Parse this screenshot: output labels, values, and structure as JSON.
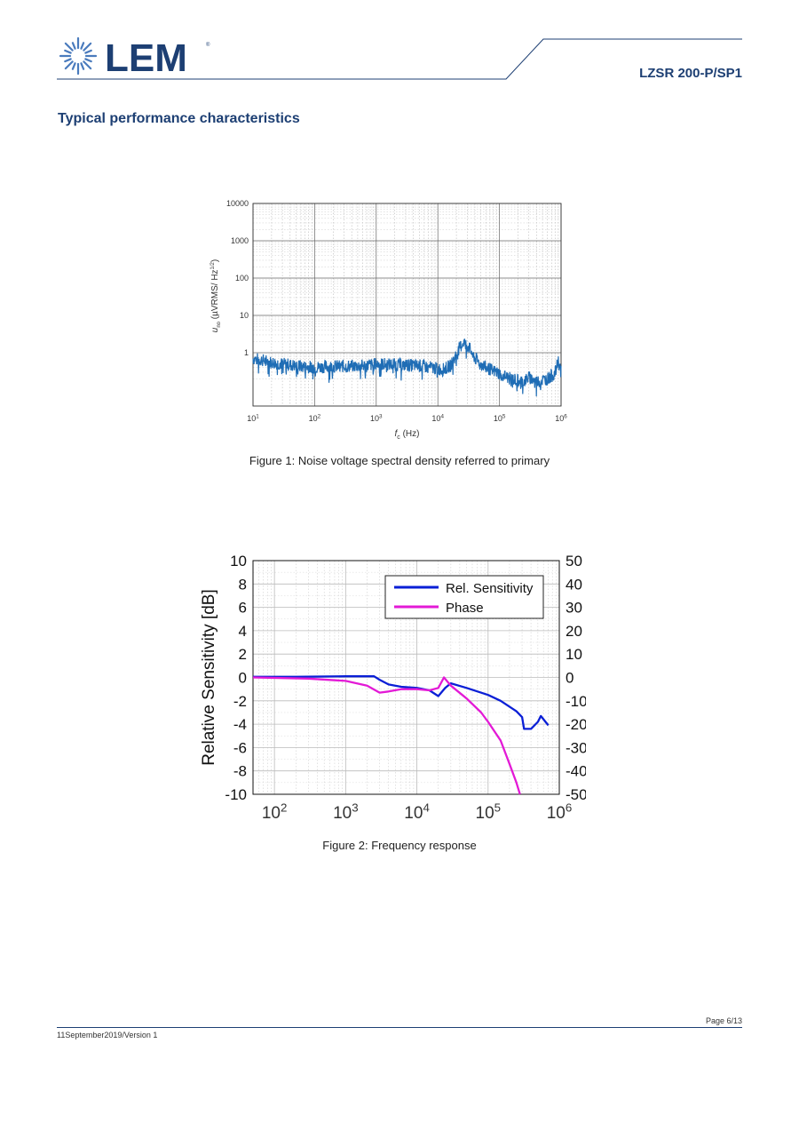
{
  "header": {
    "logo_text": "LEM",
    "document_id": "LZSR 200-P/SP1",
    "brand_color": "#1d3f73"
  },
  "section_title": "Typical performance characteristics",
  "figure1": {
    "caption": "Figure 1: Noise voltage spectral density referred to primary"
  },
  "figure2": {
    "caption": "Figure 2: Frequency response"
  },
  "footer": {
    "page": "Page 6/13",
    "date_version": "11September2019/Version 1"
  },
  "chart_data": [
    {
      "type": "line",
      "id": "noise-density",
      "xlabel": "f_c (Hz)",
      "xlabel_main": "f",
      "xlabel_sub": "c",
      "xlabel_unit": "(Hz)",
      "ylabel": "u_no (µVRMS/ Hz^1/2)",
      "ylabel_sym": "u",
      "ylabel_sub": "no",
      "ylabel_unit": "(µVRMS/ Hz",
      "ylabel_exp": "1/2",
      "ylabel_close": ")",
      "x_scale": "log",
      "y_scale": "log",
      "xlim": [
        10,
        1000000
      ],
      "ylim": [
        0.04,
        10000
      ],
      "x_ticks": [
        {
          "b": "10",
          "e": "1"
        },
        {
          "b": "10",
          "e": "2"
        },
        {
          "b": "10",
          "e": "3"
        },
        {
          "b": "10",
          "e": "4"
        },
        {
          "b": "10",
          "e": "5"
        },
        {
          "b": "10",
          "e": "6"
        }
      ],
      "y_ticks": [
        "1",
        "10",
        "100",
        "1000",
        "10000"
      ],
      "grid": true,
      "series": [
        {
          "color": "#1f6db5",
          "points": [
            [
              10,
              0.7
            ],
            [
              15,
              0.62
            ],
            [
              20,
              0.55
            ],
            [
              30,
              0.5
            ],
            [
              50,
              0.45
            ],
            [
              70,
              0.42
            ],
            [
              100,
              0.41
            ],
            [
              200,
              0.43
            ],
            [
              400,
              0.44
            ],
            [
              700,
              0.45
            ],
            [
              1000,
              0.5
            ],
            [
              2000,
              0.48
            ],
            [
              3000,
              0.47
            ],
            [
              5000,
              0.45
            ],
            [
              8000,
              0.4
            ],
            [
              12000,
              0.35
            ],
            [
              16000,
              0.45
            ],
            [
              20000,
              0.9
            ],
            [
              26000,
              2.0
            ],
            [
              32000,
              1.4
            ],
            [
              40000,
              0.7
            ],
            [
              60000,
              0.4
            ],
            [
              100000,
              0.28
            ],
            [
              150000,
              0.2
            ],
            [
              250000,
              0.17
            ],
            [
              300000,
              0.22
            ],
            [
              400000,
              0.17
            ],
            [
              600000,
              0.2
            ],
            [
              800000,
              0.28
            ],
            [
              900000,
              0.6
            ],
            [
              1000000,
              0.3
            ]
          ]
        }
      ]
    },
    {
      "type": "line",
      "id": "frequency-response",
      "ylabel": "Relative Sensitivity [dB]",
      "x_scale": "log",
      "xlim": [
        50,
        1000000
      ],
      "ylim": [
        -10,
        10
      ],
      "y2lim": [
        -50,
        50
      ],
      "x_ticks": [
        {
          "b": "10",
          "e": "2"
        },
        {
          "b": "10",
          "e": "3"
        },
        {
          "b": "10",
          "e": "4"
        },
        {
          "b": "10",
          "e": "5"
        },
        {
          "b": "10",
          "e": "6"
        }
      ],
      "y_ticks": [
        "10",
        "8",
        "6",
        "4",
        "2",
        "0",
        "-2",
        "-4",
        "-6",
        "-8",
        "-10"
      ],
      "y2_ticks": [
        "50",
        "40",
        "30",
        "20",
        "10",
        "0",
        "-10",
        "-20",
        "-30",
        "-40",
        "-50"
      ],
      "grid": true,
      "legend": "top-right",
      "series": [
        {
          "name": "Rel. Sensitivity",
          "color": "#0a1fd6",
          "axis": "left",
          "points": [
            [
              50,
              0.05
            ],
            [
              200,
              0.05
            ],
            [
              1000,
              0.1
            ],
            [
              2500,
              0.1
            ],
            [
              3000,
              -0.2
            ],
            [
              4000,
              -0.6
            ],
            [
              6000,
              -0.8
            ],
            [
              10000,
              -0.9
            ],
            [
              15000,
              -1.1
            ],
            [
              20000,
              -1.6
            ],
            [
              25000,
              -0.9
            ],
            [
              30000,
              -0.5
            ],
            [
              50000,
              -0.9
            ],
            [
              100000,
              -1.5
            ],
            [
              150000,
              -2.0
            ],
            [
              250000,
              -2.9
            ],
            [
              300000,
              -3.4
            ],
            [
              320000,
              -4.4
            ],
            [
              400000,
              -4.4
            ],
            [
              500000,
              -3.8
            ],
            [
              550000,
              -3.3
            ],
            [
              700000,
              -4.1
            ]
          ]
        },
        {
          "name": "Phase",
          "color": "#e31ad6",
          "axis": "right",
          "points": [
            [
              50,
              0
            ],
            [
              300,
              -0.5
            ],
            [
              1000,
              -1.5
            ],
            [
              2000,
              -3.5
            ],
            [
              3000,
              -6.5
            ],
            [
              4000,
              -6.0
            ],
            [
              6000,
              -5.0
            ],
            [
              10000,
              -5.0
            ],
            [
              15000,
              -5.5
            ],
            [
              20000,
              -4.5
            ],
            [
              24000,
              0
            ],
            [
              30000,
              -3.5
            ],
            [
              50000,
              -9
            ],
            [
              80000,
              -15
            ],
            [
              100000,
              -19
            ],
            [
              150000,
              -27
            ],
            [
              200000,
              -37
            ],
            [
              250000,
              -45
            ],
            [
              280000,
              -50
            ]
          ]
        }
      ]
    }
  ]
}
